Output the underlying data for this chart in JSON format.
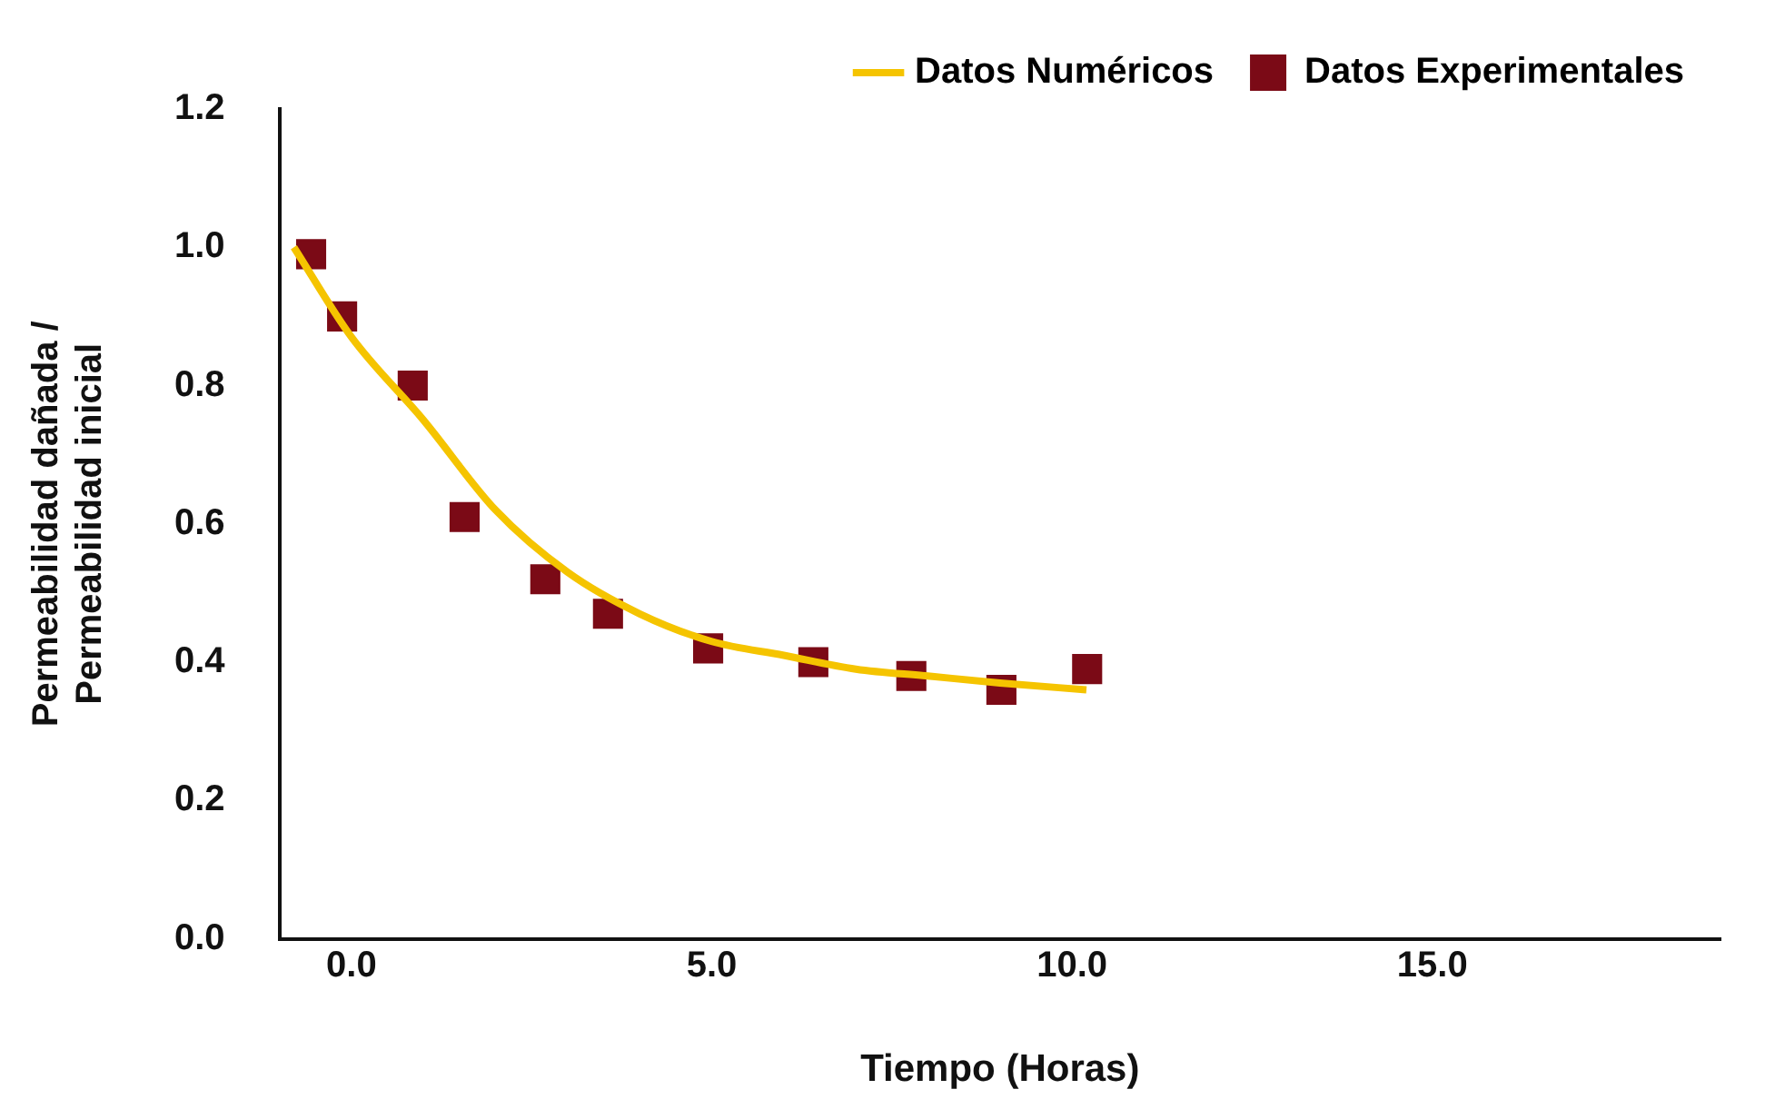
{
  "chart_data": {
    "type": "scatter",
    "xlabel": "Tiempo (Horas)",
    "ylabel": "Permeabilidad dañada / Permeabilidad inicial",
    "xlim": [
      -1,
      19
    ],
    "xticks": [
      {
        "value": 0,
        "label": "0.0"
      },
      {
        "value": 5,
        "label": "5.0"
      },
      {
        "value": 10,
        "label": "10.0"
      },
      {
        "value": 15,
        "label": "15.0"
      }
    ],
    "ylim": [
      0,
      1.2
    ],
    "yticks": [
      {
        "value": 0,
        "label": "0.0"
      },
      {
        "value": 0.2,
        "label": "0.2"
      },
      {
        "value": 0.4,
        "label": "0.4"
      },
      {
        "value": 0.6,
        "label": "0.6"
      },
      {
        "value": 0.8,
        "label": "0.8"
      },
      {
        "value": 1,
        "label": "1.0"
      },
      {
        "value": 1.2,
        "label": "1.2"
      }
    ],
    "grid": false,
    "legend": "top right",
    "series": [
      {
        "name": "Datos Numéricos",
        "type": "line",
        "color": "#f5c400",
        "marker": "none",
        "line_style": "solid",
        "x": [
          -0.8,
          0,
          1,
          2,
          3,
          4,
          5,
          6,
          7,
          8,
          9,
          10.2
        ],
        "values": [
          1.0,
          0.87,
          0.75,
          0.62,
          0.53,
          0.47,
          0.43,
          0.41,
          0.39,
          0.38,
          0.37,
          0.36
        ]
      },
      {
        "name": "Datos Experimentales",
        "color": "#7b0a16",
        "marker": "square",
        "x": [
          -0.56,
          -0.13,
          0.85,
          1.57,
          2.69,
          3.56,
          4.95,
          6.41,
          7.77,
          9.02,
          10.21
        ],
        "values": [
          0.99,
          0.9,
          0.8,
          0.61,
          0.52,
          0.47,
          0.42,
          0.4,
          0.38,
          0.36,
          0.39
        ]
      }
    ]
  }
}
